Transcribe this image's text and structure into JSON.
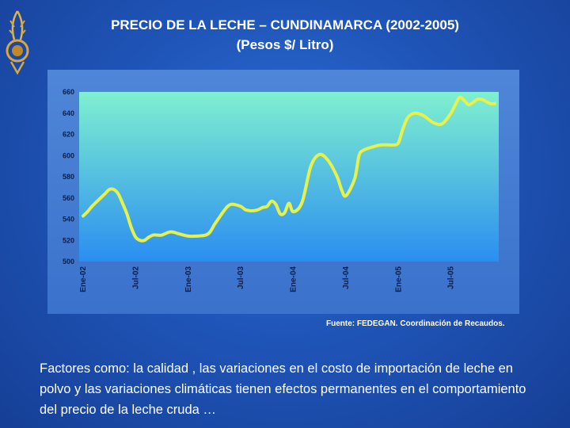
{
  "title_line1": "PRECIO DE LA LECHE – CUNDINAMARCA (2002-2005)",
  "title_line2": "(Pesos $/ Litro)",
  "source": "Fuente: FEDEGAN. Coordinación de Recaudos.",
  "body_text": "Factores como: la calidad , las variaciones en el costo de importación de leche en polvo y las variaciones climáticas tienen efectos permanentes en el comportamiento del precio de la leche cruda …",
  "colors": {
    "background": "#1f55b8",
    "plot_top": "#7ff0d0",
    "plot_bottom": "#2a8ef0",
    "line": "#e8f04a"
  },
  "chart_data": {
    "type": "line",
    "title": "PRECIO DE LA LECHE – CUNDINAMARCA (2002-2005)",
    "ylabel": "(Pesos $/ Litro)",
    "xlabel": "",
    "ylim": [
      500,
      660
    ],
    "yticks": [
      500,
      520,
      540,
      560,
      580,
      600,
      620,
      640,
      660
    ],
    "xlim": [
      0,
      47
    ],
    "xticks": [
      {
        "label": "Ene-02",
        "x": 0
      },
      {
        "label": "Jul-02",
        "x": 6
      },
      {
        "label": "Ene-03",
        "x": 12
      },
      {
        "label": "Jul-03",
        "x": 18
      },
      {
        "label": "Ene-04",
        "x": 24
      },
      {
        "label": "Jul-04",
        "x": 30
      },
      {
        "label": "Ene-05",
        "x": 36
      },
      {
        "label": "Jul-05",
        "x": 42
      }
    ],
    "series": [
      {
        "x": [
          0,
          0.5,
          1,
          2,
          2.5,
          3,
          3.5,
          4,
          4.5,
          5,
          5.5,
          6,
          6.5,
          7,
          7.5,
          8,
          8.5,
          9,
          10,
          11,
          12,
          13,
          14,
          14.5,
          15,
          15.5,
          16,
          16.5,
          17,
          18,
          18.5,
          19,
          19.5,
          20,
          20.5,
          21,
          21.5,
          22,
          22.5,
          23,
          23.5,
          24,
          25,
          26,
          27,
          28,
          29,
          29.5,
          30,
          31,
          31.5,
          32,
          33,
          34,
          35,
          35.5,
          36,
          36.5,
          37,
          37.5,
          38,
          38.5,
          39,
          40,
          41,
          42,
          42.5,
          43,
          43.5,
          44,
          44.5,
          45,
          45.5,
          46,
          46.5,
          47
        ],
        "values": [
          543,
          547,
          552,
          560,
          564,
          568,
          568,
          564,
          555,
          545,
          532,
          523,
          520,
          520,
          523,
          525,
          525,
          525,
          528,
          526,
          524,
          524,
          525,
          528,
          535,
          541,
          547,
          552,
          554,
          552,
          549,
          548,
          548,
          549,
          551,
          552,
          557,
          554,
          545,
          546,
          555,
          547,
          556,
          590,
          601,
          595,
          580,
          568,
          562,
          578,
          600,
          605,
          608,
          610,
          610,
          610,
          612,
          625,
          635,
          639,
          640,
          639,
          637,
          631,
          630,
          640,
          648,
          655,
          652,
          648,
          650,
          653,
          653,
          651,
          649,
          649
        ]
      }
    ],
    "grid": false,
    "legend": "none"
  }
}
